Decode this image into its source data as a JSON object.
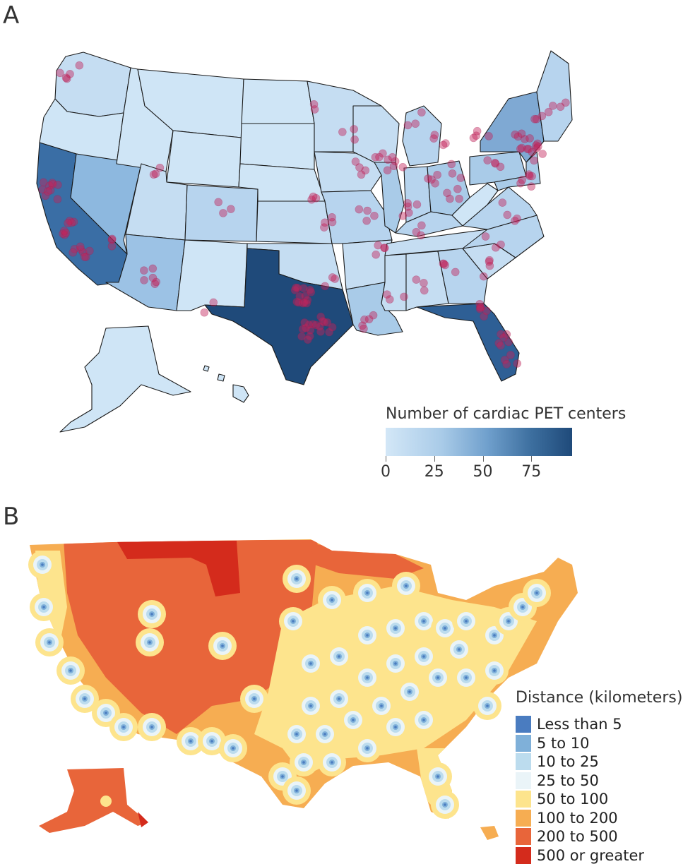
{
  "panel_a": {
    "letter": "A",
    "legend": {
      "title": "Number of cardiac PET centers",
      "ticks": [
        {
          "label": "0",
          "value": 0
        },
        {
          "label": "25",
          "value": 25
        },
        {
          "label": "50",
          "value": 50
        },
        {
          "label": "75",
          "value": 75
        }
      ],
      "max_value": 96,
      "color_low": "#d3e7f7",
      "color_high": "#1f4a7a"
    },
    "dot_color": "#c4245a"
  },
  "panel_b": {
    "letter": "B",
    "legend": {
      "title": "Distance (kilometers)",
      "categories": [
        {
          "label": "Less than 5",
          "color": "#4a7cc0"
        },
        {
          "label": "5 to 10",
          "color": "#7fb0d9"
        },
        {
          "label": "10 to 25",
          "color": "#bcdcee"
        },
        {
          "label": "25 to 50",
          "color": "#eaf4f8"
        },
        {
          "label": "50 to 100",
          "color": "#fde48d"
        },
        {
          "label": "100 to 200",
          "color": "#f6ad52"
        },
        {
          "label": "200 to 500",
          "color": "#e8653a"
        },
        {
          "label": "500 or greater",
          "color": "#d42b1c"
        }
      ]
    }
  }
}
